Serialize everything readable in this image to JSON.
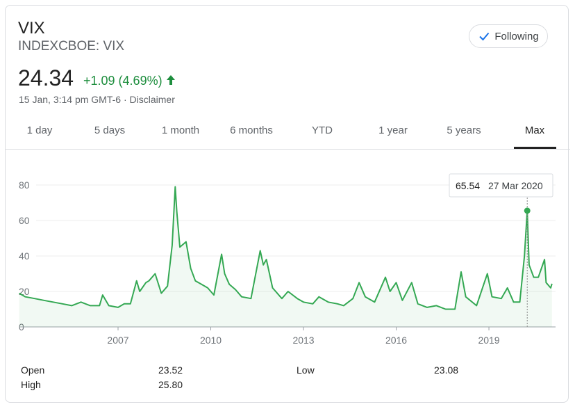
{
  "header": {
    "title": "VIX",
    "subtitle": "INDEXCBOE: VIX",
    "button": "Following",
    "price": "24.34",
    "change": "+1.09 (4.69%)",
    "timestamp": "15 Jan, 3:14 pm GMT-6",
    "separator": "·",
    "disclaimer": "Disclaimer"
  },
  "tabs": [
    "1 day",
    "5 days",
    "1 month",
    "6 months",
    "YTD",
    "1 year",
    "5 years",
    "Max"
  ],
  "chart_data": {
    "type": "line",
    "color": "#34a853",
    "x": [
      2003.8,
      2004.0,
      2004.3,
      2004.6,
      2004.9,
      2005.2,
      2005.5,
      2005.8,
      2006.1,
      2006.4,
      2006.5,
      2006.7,
      2007.0,
      2007.2,
      2007.4,
      2007.6,
      2007.7,
      2007.9,
      2008.0,
      2008.2,
      2008.4,
      2008.6,
      2008.75,
      2008.85,
      2008.9,
      2009.0,
      2009.2,
      2009.35,
      2009.5,
      2009.7,
      2009.9,
      2010.1,
      2010.35,
      2010.45,
      2010.6,
      2010.8,
      2011.0,
      2011.3,
      2011.6,
      2011.7,
      2011.8,
      2012.0,
      2012.3,
      2012.5,
      2012.8,
      2013.0,
      2013.3,
      2013.5,
      2013.8,
      2014.1,
      2014.3,
      2014.6,
      2014.8,
      2015.0,
      2015.3,
      2015.65,
      2015.8,
      2016.0,
      2016.2,
      2016.5,
      2016.7,
      2017.0,
      2017.3,
      2017.6,
      2017.9,
      2018.1,
      2018.25,
      2018.6,
      2018.85,
      2018.95,
      2019.1,
      2019.4,
      2019.6,
      2019.8,
      2020.0,
      2020.15,
      2020.24,
      2020.3,
      2020.45,
      2020.6,
      2020.8,
      2020.85,
      2021.0,
      2021.04
    ],
    "y": [
      19,
      17,
      16,
      15,
      14,
      13,
      12,
      14,
      12,
      12,
      18,
      12,
      11,
      13,
      13,
      26,
      20,
      25,
      26,
      30,
      19,
      23,
      46,
      79,
      65,
      45,
      48,
      33,
      26,
      24,
      22,
      18,
      41,
      30,
      24,
      21,
      17,
      16,
      43,
      35,
      38,
      22,
      16,
      20,
      16,
      14,
      13,
      17,
      14,
      13,
      12,
      16,
      25,
      17,
      14,
      28,
      20,
      25,
      15,
      25,
      13,
      11,
      12,
      10,
      10,
      31,
      17,
      12,
      25,
      30,
      17,
      16,
      22,
      14,
      14,
      40,
      65.54,
      35,
      28,
      28,
      38,
      25,
      22,
      24.34
    ],
    "xlim": [
      2003.8,
      2021.1
    ],
    "ylim": [
      0,
      85
    ],
    "xticks": [
      2007,
      2010,
      2013,
      2016,
      2019
    ],
    "yticks": [
      0,
      20,
      40,
      60,
      80
    ],
    "grid": true,
    "tooltip": {
      "x": 2020.24,
      "y": 65.54,
      "date": "27 Mar 2020"
    }
  },
  "stats": [
    [
      "Open",
      "23.52",
      "Low",
      "23.08"
    ],
    [
      "High",
      "25.80"
    ]
  ]
}
